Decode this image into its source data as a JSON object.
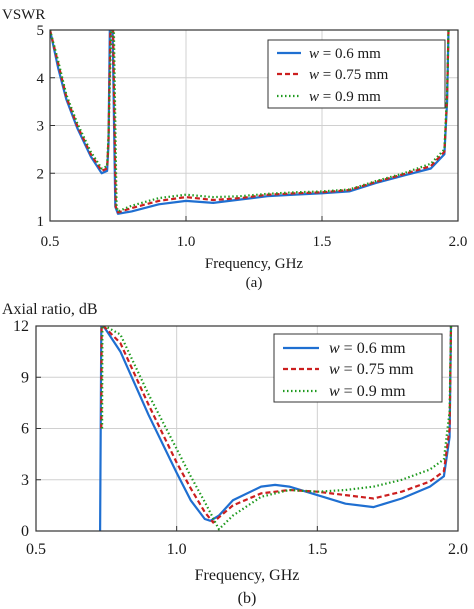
{
  "chart_data": [
    {
      "type": "line",
      "panel_label": "(a)",
      "ylabel": "VSWR",
      "xlabel": "Frequency, GHz",
      "xlim": [
        0.5,
        2.0
      ],
      "ylim": [
        1,
        5
      ],
      "xticks": [
        0.5,
        1.0,
        1.5,
        2.0
      ],
      "xtick_labels": [
        "0.5",
        "1.0",
        "1.5",
        "2.0"
      ],
      "yticks": [
        1,
        2,
        3,
        4,
        5
      ],
      "ytick_labels": [
        "1",
        "2",
        "3",
        "4",
        "5"
      ],
      "grid": true,
      "legend_position": "top-right",
      "series": [
        {
          "name": "w = 0.6 mm",
          "legend_var": "w",
          "legend_rest": " = 0.6 mm",
          "color": "#1f6fd1",
          "dash": "solid",
          "x": [
            0.5,
            0.53,
            0.56,
            0.6,
            0.65,
            0.69,
            0.71,
            0.715,
            0.72,
            0.73,
            0.74,
            0.75,
            0.8,
            0.9,
            1.0,
            1.1,
            1.2,
            1.3,
            1.4,
            1.5,
            1.6,
            1.7,
            1.8,
            1.9,
            1.95,
            1.96,
            1.965
          ],
          "y": [
            5.0,
            4.2,
            3.55,
            2.95,
            2.35,
            2.0,
            2.05,
            2.6,
            5.0,
            5.0,
            1.3,
            1.15,
            1.2,
            1.35,
            1.42,
            1.38,
            1.45,
            1.52,
            1.55,
            1.58,
            1.62,
            1.8,
            1.95,
            2.1,
            2.4,
            3.5,
            5.0
          ]
        },
        {
          "name": "w = 0.75 mm",
          "legend_var": "w",
          "legend_rest": " = 0.75 mm",
          "color": "#cc1f1f",
          "dash": "5,3",
          "x": [
            0.5,
            0.53,
            0.56,
            0.6,
            0.65,
            0.69,
            0.71,
            0.715,
            0.722,
            0.732,
            0.742,
            0.75,
            0.8,
            0.9,
            1.0,
            1.1,
            1.2,
            1.3,
            1.4,
            1.5,
            1.6,
            1.7,
            1.8,
            1.9,
            1.95,
            1.96,
            1.965
          ],
          "y": [
            5.0,
            4.3,
            3.6,
            3.0,
            2.4,
            2.05,
            2.1,
            2.7,
            5.0,
            5.0,
            1.3,
            1.18,
            1.27,
            1.42,
            1.5,
            1.44,
            1.48,
            1.55,
            1.58,
            1.6,
            1.65,
            1.82,
            1.98,
            2.15,
            2.45,
            3.6,
            5.0
          ]
        },
        {
          "name": "w = 0.9 mm",
          "legend_var": "w",
          "legend_rest": " = 0.9 mm",
          "color": "#1e9a1e",
          "dash": "1.5,2.5",
          "x": [
            0.5,
            0.53,
            0.56,
            0.6,
            0.65,
            0.69,
            0.71,
            0.715,
            0.725,
            0.735,
            0.745,
            0.75,
            0.8,
            0.9,
            1.0,
            1.1,
            1.2,
            1.3,
            1.4,
            1.5,
            1.6,
            1.7,
            1.8,
            1.9,
            1.95,
            1.96,
            1.965
          ],
          "y": [
            5.0,
            4.35,
            3.65,
            3.05,
            2.45,
            2.1,
            2.15,
            2.8,
            5.0,
            5.0,
            1.3,
            1.2,
            1.32,
            1.48,
            1.55,
            1.5,
            1.52,
            1.57,
            1.6,
            1.62,
            1.66,
            1.84,
            2.0,
            2.2,
            2.5,
            3.7,
            5.0
          ]
        }
      ]
    },
    {
      "type": "line",
      "panel_label": "(b)",
      "ylabel": "Axial ratio, dB",
      "xlabel": "Frequency, GHz",
      "xlim": [
        0.5,
        2.0
      ],
      "ylim": [
        0,
        12
      ],
      "xticks": [
        0.5,
        1.0,
        1.5,
        2.0
      ],
      "xtick_labels": [
        "0.5",
        "1.0",
        "1.5",
        "2.0"
      ],
      "yticks": [
        0,
        3,
        6,
        9,
        12
      ],
      "ytick_labels": [
        "0",
        "3",
        "6",
        "9",
        "12"
      ],
      "grid": true,
      "legend_position": "top-right",
      "series": [
        {
          "name": "w = 0.6 mm",
          "legend_var": "w",
          "legend_rest": " = 0.6 mm",
          "color": "#1f6fd1",
          "dash": "solid",
          "x": [
            0.728,
            0.73,
            0.732,
            0.74,
            0.8,
            0.9,
            1.0,
            1.05,
            1.1,
            1.12,
            1.15,
            1.2,
            1.3,
            1.35,
            1.4,
            1.5,
            1.6,
            1.7,
            1.8,
            1.9,
            1.95,
            1.97,
            1.975
          ],
          "y": [
            0,
            6,
            12,
            12,
            10.5,
            6.8,
            3.4,
            1.8,
            0.7,
            0.6,
            0.9,
            1.8,
            2.6,
            2.7,
            2.6,
            2.1,
            1.6,
            1.4,
            1.9,
            2.6,
            3.2,
            5.5,
            12
          ]
        },
        {
          "name": "w = 0.75 mm",
          "legend_var": "w",
          "legend_rest": " = 0.75 mm",
          "color": "#cc1f1f",
          "dash": "5,3",
          "x": [
            0.732,
            0.733,
            0.74,
            0.8,
            0.9,
            1.0,
            1.05,
            1.1,
            1.13,
            1.15,
            1.2,
            1.3,
            1.4,
            1.5,
            1.6,
            1.7,
            1.8,
            1.9,
            1.95,
            1.97,
            1.975
          ],
          "y": [
            6,
            12,
            12,
            11,
            7.4,
            4.0,
            2.5,
            1.1,
            0.5,
            0.8,
            1.5,
            2.2,
            2.4,
            2.3,
            2.1,
            1.9,
            2.3,
            2.9,
            3.5,
            6.0,
            12
          ]
        },
        {
          "name": "w = 0.9 mm",
          "legend_var": "w",
          "legend_rest": " = 0.9 mm",
          "color": "#1e9a1e",
          "dash": "1.5,2.5",
          "x": [
            0.735,
            0.736,
            0.745,
            0.8,
            0.9,
            1.0,
            1.05,
            1.1,
            1.15,
            1.2,
            1.3,
            1.4,
            1.5,
            1.6,
            1.7,
            1.8,
            1.9,
            1.95,
            1.97,
            1.975
          ],
          "y": [
            6,
            12,
            12,
            11.5,
            8.0,
            4.8,
            3.2,
            1.7,
            0.1,
            0.9,
            2.0,
            2.4,
            2.3,
            2.4,
            2.6,
            3.0,
            3.6,
            4.2,
            7.0,
            12
          ]
        }
      ]
    }
  ]
}
